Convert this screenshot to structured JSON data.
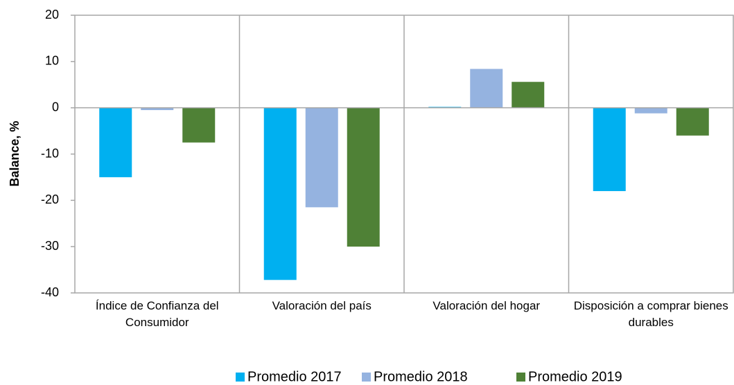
{
  "chart_data": {
    "type": "bar",
    "ylabel": "Balance, %",
    "categories": [
      "Índice de Confianza del Consumidor",
      "Valoración del país",
      "Valoración del hogar",
      "Disposición a comprar bienes durables"
    ],
    "series": [
      {
        "name": "Promedio 2017",
        "color": "#00b0f0",
        "values": [
          -15,
          -37.2,
          0.2,
          -18
        ]
      },
      {
        "name": "Promedio 2018",
        "color": "#95b3e0",
        "values": [
          -0.5,
          -21.5,
          8.4,
          -1.2
        ]
      },
      {
        "name": "Promedio 2019",
        "color": "#4f8136",
        "values": [
          -7.5,
          -30,
          5.6,
          -6
        ]
      }
    ],
    "ylim": [
      -40,
      20
    ],
    "yticks": [
      -40,
      -30,
      -20,
      -10,
      0,
      10,
      20
    ]
  }
}
